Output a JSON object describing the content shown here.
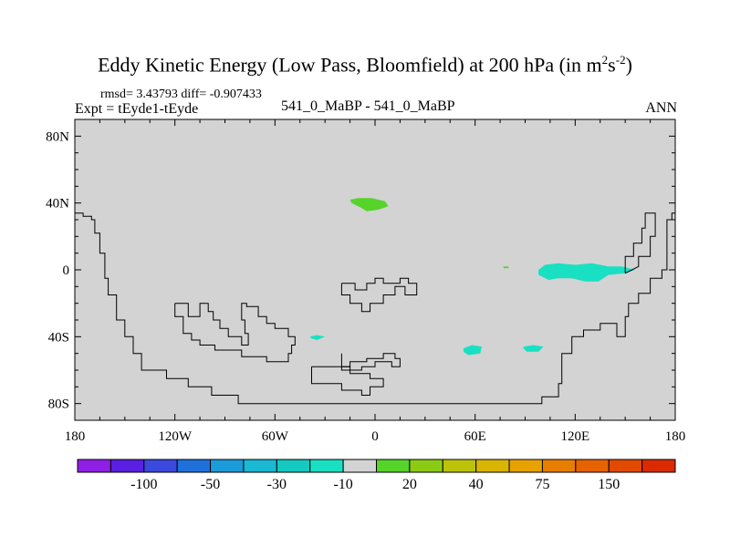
{
  "chart_data": {
    "type": "heatmap",
    "title_main": "Eddy Kinetic Energy (Low Pass, Bloomfield) at 200 hPa (in m",
    "title_sup1": "2",
    "title_mid": "s",
    "title_sup2": "-2",
    "title_end": ")",
    "stats": "rmsd= 3.43793 diff= -0.907433",
    "expt": "Expt = tEyde1-tEyde",
    "case": "541_0_MaBP - 541_0_MaBP",
    "season": "ANN",
    "x_ticks": [
      "180",
      "120W",
      "60W",
      "0",
      "60E",
      "120E",
      "180"
    ],
    "x_tick_values": [
      -180,
      -120,
      -60,
      0,
      60,
      120,
      180
    ],
    "y_ticks": [
      "80N",
      "40N",
      "0",
      "40S",
      "80S"
    ],
    "y_tick_values": [
      80,
      40,
      0,
      -40,
      -80
    ],
    "xlim": [
      -180,
      180
    ],
    "ylim": [
      -90,
      90
    ],
    "background_color": "#d3d3d3",
    "colorbar": {
      "colors": [
        "#8f1fe5",
        "#5a1fe0",
        "#3a49de",
        "#2070dc",
        "#1b9bd9",
        "#1ab8d3",
        "#14c9c0",
        "#19e0c3",
        "#d3d3d3",
        "#56d42a",
        "#8ccb14",
        "#bcc20a",
        "#d9b500",
        "#e7a200",
        "#e77e00",
        "#e76200",
        "#e24a00",
        "#da2b00"
      ],
      "labels": [
        "-100",
        "-50",
        "-30",
        "-10",
        "20",
        "40",
        "75",
        "150"
      ],
      "label_boundaries": [
        2,
        4,
        6,
        8,
        10,
        12,
        14,
        16
      ]
    },
    "anomalies": [
      {
        "name": "north-atlantic",
        "color": "#56d42a",
        "points": [
          [
            -15,
            42
          ],
          [
            -10,
            43
          ],
          [
            -2,
            43
          ],
          [
            6,
            41
          ],
          [
            8,
            38
          ],
          [
            2,
            36
          ],
          [
            -5,
            35
          ],
          [
            -8,
            37
          ],
          [
            -14,
            40
          ]
        ]
      },
      {
        "name": "west-pacific",
        "color": "#19e0c3",
        "points": [
          [
            98,
            0
          ],
          [
            102,
            3
          ],
          [
            110,
            4
          ],
          [
            120,
            3
          ],
          [
            130,
            4
          ],
          [
            140,
            2
          ],
          [
            148,
            2
          ],
          [
            156,
            0
          ],
          [
            150,
            -2
          ],
          [
            140,
            -3
          ],
          [
            134,
            -7
          ],
          [
            126,
            -7
          ],
          [
            118,
            -5
          ],
          [
            110,
            -5
          ],
          [
            104,
            -6
          ],
          [
            98,
            -3
          ]
        ]
      },
      {
        "name": "east-pacific",
        "color": "#19e0c3",
        "points": [
          [
            -39,
            -40
          ],
          [
            -35,
            -39
          ],
          [
            -30,
            -40
          ],
          [
            -35,
            -42
          ],
          [
            -38,
            -41
          ]
        ]
      },
      {
        "name": "indian-ocean",
        "color": "#19e0c3",
        "points": [
          [
            53,
            -47
          ],
          [
            58,
            -45
          ],
          [
            64,
            -46
          ],
          [
            63,
            -50
          ],
          [
            56,
            -51
          ],
          [
            53,
            -49
          ]
        ]
      },
      {
        "name": "south-indian",
        "color": "#19e0c3",
        "points": [
          [
            89,
            -46
          ],
          [
            95,
            -45
          ],
          [
            101,
            -46
          ],
          [
            98,
            -49
          ],
          [
            91,
            -49
          ],
          [
            89,
            -47
          ]
        ]
      },
      {
        "name": "small-speck",
        "color": "#56d42a",
        "points": [
          [
            77,
            2
          ],
          [
            80,
            2
          ],
          [
            80,
            1
          ],
          [
            77,
            1
          ]
        ]
      }
    ],
    "outlines": [
      [
        [
          -180,
          34
        ],
        [
          -175,
          34
        ],
        [
          -175,
          32
        ],
        [
          -170,
          32
        ],
        [
          -170,
          30
        ],
        [
          -168,
          30
        ],
        [
          -168,
          22
        ],
        [
          -165,
          22
        ],
        [
          -165,
          10
        ],
        [
          -162,
          10
        ],
        [
          -162,
          -5
        ],
        [
          -160,
          -5
        ],
        [
          -160,
          -15
        ],
        [
          -155,
          -15
        ],
        [
          -155,
          -30
        ],
        [
          -150,
          -30
        ],
        [
          -150,
          -40
        ],
        [
          -145,
          -40
        ],
        [
          -145,
          -50
        ],
        [
          -140,
          -50
        ],
        [
          -140,
          -60
        ],
        [
          -125,
          -60
        ],
        [
          -125,
          -65
        ],
        [
          -112,
          -65
        ],
        [
          -112,
          -70
        ],
        [
          -98,
          -70
        ],
        [
          -98,
          -75
        ],
        [
          -82,
          -75
        ],
        [
          -82,
          -80
        ],
        [
          -40,
          -80
        ],
        [
          20,
          -80
        ],
        [
          80,
          -80
        ],
        [
          100,
          -80
        ],
        [
          100,
          -76
        ],
        [
          110,
          -76
        ],
        [
          110,
          -68
        ],
        [
          112,
          -68
        ],
        [
          112,
          -50
        ],
        [
          118,
          -50
        ],
        [
          118,
          -40
        ],
        [
          125,
          -40
        ],
        [
          125,
          -36
        ],
        [
          135,
          -36
        ],
        [
          135,
          -32
        ],
        [
          145,
          -32
        ],
        [
          145,
          -40
        ],
        [
          150,
          -40
        ],
        [
          150,
          -28
        ],
        [
          152,
          -28
        ],
        [
          152,
          -20
        ],
        [
          158,
          -20
        ],
        [
          158,
          -14
        ],
        [
          165,
          -14
        ],
        [
          165,
          -5
        ],
        [
          172,
          -5
        ],
        [
          172,
          0
        ],
        [
          175,
          0
        ],
        [
          175,
          30
        ],
        [
          178,
          30
        ],
        [
          178,
          34
        ],
        [
          180,
          34
        ]
      ],
      [
        [
          150,
          -2
        ],
        [
          150,
          8
        ],
        [
          155,
          8
        ],
        [
          155,
          16
        ],
        [
          160,
          16
        ],
        [
          160,
          25
        ],
        [
          162,
          25
        ],
        [
          162,
          34
        ],
        [
          168,
          34
        ],
        [
          168,
          20
        ],
        [
          165,
          20
        ],
        [
          165,
          8
        ],
        [
          158,
          8
        ],
        [
          158,
          2
        ],
        [
          150,
          -2
        ]
      ],
      [
        [
          -120,
          -20
        ],
        [
          -120,
          -28
        ],
        [
          -115,
          -28
        ],
        [
          -115,
          -38
        ],
        [
          -110,
          -38
        ],
        [
          -110,
          -42
        ],
        [
          -105,
          -42
        ],
        [
          -105,
          -45
        ],
        [
          -96,
          -45
        ],
        [
          -96,
          -48
        ],
        [
          -80,
          -48
        ],
        [
          -80,
          -52
        ],
        [
          -65,
          -52
        ],
        [
          -65,
          -55
        ],
        [
          -52,
          -55
        ],
        [
          -52,
          -50
        ],
        [
          -50,
          -50
        ],
        [
          -50,
          -45
        ],
        [
          -48,
          -45
        ],
        [
          -48,
          -40
        ],
        [
          -52,
          -40
        ],
        [
          -52,
          -35
        ],
        [
          -60,
          -35
        ],
        [
          -60,
          -32
        ],
        [
          -65,
          -32
        ],
        [
          -65,
          -28
        ],
        [
          -70,
          -28
        ],
        [
          -70,
          -22
        ],
        [
          -77,
          -22
        ],
        [
          -77,
          -20
        ],
        [
          -80,
          -20
        ],
        [
          -80,
          -30
        ],
        [
          -78,
          -30
        ],
        [
          -78,
          -38
        ],
        [
          -76,
          -38
        ],
        [
          -76,
          -45
        ],
        [
          -80,
          -45
        ],
        [
          -80,
          -40
        ],
        [
          -88,
          -40
        ],
        [
          -88,
          -35
        ],
        [
          -93,
          -35
        ],
        [
          -93,
          -30
        ],
        [
          -97,
          -30
        ],
        [
          -97,
          -25
        ],
        [
          -100,
          -25
        ],
        [
          -100,
          -20
        ],
        [
          -105,
          -20
        ],
        [
          -105,
          -28
        ],
        [
          -112,
          -28
        ],
        [
          -112,
          -20
        ],
        [
          -120,
          -20
        ]
      ],
      [
        [
          -20,
          -8
        ],
        [
          -20,
          -15
        ],
        [
          -15,
          -15
        ],
        [
          -15,
          -20
        ],
        [
          -8,
          -20
        ],
        [
          -8,
          -25
        ],
        [
          -3,
          -25
        ],
        [
          -3,
          -20
        ],
        [
          5,
          -20
        ],
        [
          5,
          -15
        ],
        [
          12,
          -15
        ],
        [
          12,
          -10
        ],
        [
          18,
          -10
        ],
        [
          18,
          -15
        ],
        [
          25,
          -15
        ],
        [
          25,
          -8
        ],
        [
          20,
          -8
        ],
        [
          20,
          -5
        ],
        [
          15,
          -5
        ],
        [
          15,
          -8
        ],
        [
          5,
          -8
        ],
        [
          5,
          -5
        ],
        [
          0,
          -5
        ],
        [
          0,
          -8
        ],
        [
          -5,
          -8
        ],
        [
          -5,
          -12
        ],
        [
          -12,
          -12
        ],
        [
          -12,
          -8
        ],
        [
          -20,
          -8
        ]
      ],
      [
        [
          -20,
          -50
        ],
        [
          -20,
          -58
        ],
        [
          -15,
          -58
        ],
        [
          -15,
          -55
        ],
        [
          -5,
          -55
        ],
        [
          -5,
          -53
        ],
        [
          5,
          -53
        ],
        [
          5,
          -50
        ],
        [
          12,
          -50
        ],
        [
          12,
          -53
        ],
        [
          15,
          -53
        ],
        [
          15,
          -58
        ],
        [
          10,
          -58
        ],
        [
          10,
          -55
        ],
        [
          0,
          -55
        ],
        [
          0,
          -58
        ],
        [
          -8,
          -58
        ],
        [
          -8,
          -60
        ],
        [
          -20,
          -60
        ],
        [
          -20,
          -50
        ]
      ],
      [
        [
          -38,
          -58
        ],
        [
          -38,
          -68
        ],
        [
          -20,
          -68
        ],
        [
          -20,
          -72
        ],
        [
          -8,
          -72
        ],
        [
          -8,
          -75
        ],
        [
          -3,
          -75
        ],
        [
          -3,
          -70
        ],
        [
          5,
          -70
        ],
        [
          5,
          -65
        ],
        [
          -3,
          -65
        ],
        [
          -3,
          -62
        ],
        [
          -15,
          -62
        ],
        [
          -15,
          -58
        ],
        [
          -38,
          -58
        ]
      ]
    ]
  }
}
